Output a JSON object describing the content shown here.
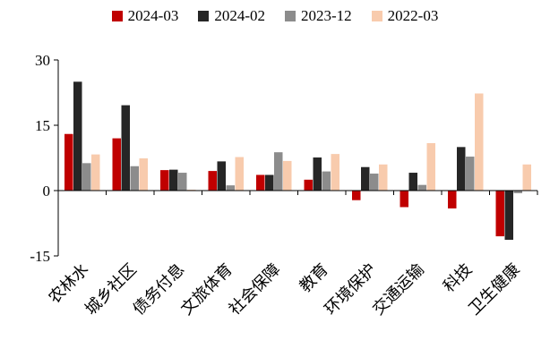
{
  "chart_data": {
    "type": "bar",
    "series": [
      {
        "name": "2024-03",
        "color": "#c00000",
        "values": [
          13,
          12,
          4.7,
          4.5,
          3.6,
          2.5,
          -2.2,
          -3.8,
          -4.1,
          -10.5
        ]
      },
      {
        "name": "2024-02",
        "color": "#262626",
        "values": [
          25,
          19.6,
          4.8,
          6.7,
          3.6,
          7.6,
          5.4,
          4.1,
          10,
          -11.3
        ]
      },
      {
        "name": "2023-12",
        "color": "#8c8c8c",
        "values": [
          6.3,
          5.6,
          4.1,
          1.2,
          8.8,
          4.4,
          3.9,
          1.3,
          7.8,
          -0.6
        ]
      },
      {
        "name": "2022-03",
        "color": "#f8cbad",
        "values": [
          8.3,
          7.4,
          0.2,
          7.7,
          6.8,
          8.4,
          6,
          10.9,
          22.3,
          6
        ]
      }
    ],
    "categories": [
      "农林水",
      "城乡社区",
      "债务付息",
      "文旅体育",
      "社会保障",
      "教育",
      "环境保护",
      "交通运输",
      "科技",
      "卫生健康"
    ],
    "yticks": [
      "30",
      "15",
      "0",
      "-15"
    ],
    "ylim": [
      -15,
      30
    ],
    "grid": false,
    "legend_position": "top"
  }
}
